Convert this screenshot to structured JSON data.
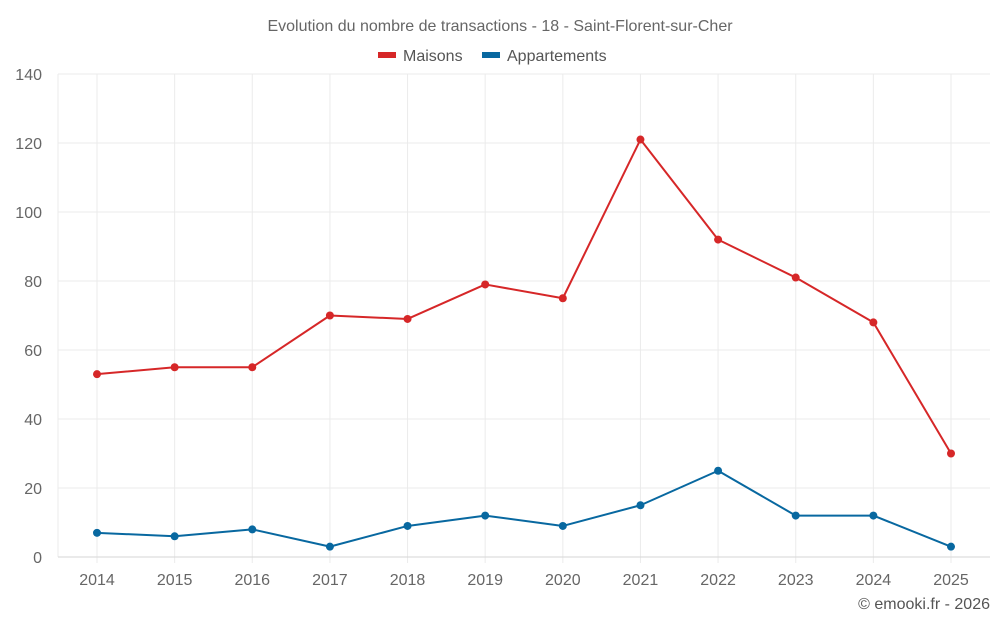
{
  "chart_data": {
    "type": "line",
    "title": "Evolution du nombre de transactions - 18 - Saint-Florent-sur-Cher",
    "xlabel": "",
    "ylabel": "",
    "categories": [
      "2014",
      "2015",
      "2016",
      "2017",
      "2018",
      "2019",
      "2020",
      "2021",
      "2022",
      "2023",
      "2024",
      "2025"
    ],
    "series": [
      {
        "name": "Maisons",
        "color": "#d62728",
        "values": [
          53,
          55,
          55,
          70,
          69,
          79,
          75,
          121,
          92,
          81,
          68,
          30
        ]
      },
      {
        "name": "Appartements",
        "color": "#0868a0",
        "values": [
          7,
          6,
          8,
          3,
          9,
          12,
          9,
          15,
          25,
          12,
          12,
          3
        ]
      }
    ],
    "ylim": [
      0,
      140
    ],
    "yticks": [
      0,
      20,
      40,
      60,
      80,
      100,
      120,
      140
    ],
    "grid": true,
    "legend": "top-center"
  },
  "credit": "© emooki.fr - 2026"
}
